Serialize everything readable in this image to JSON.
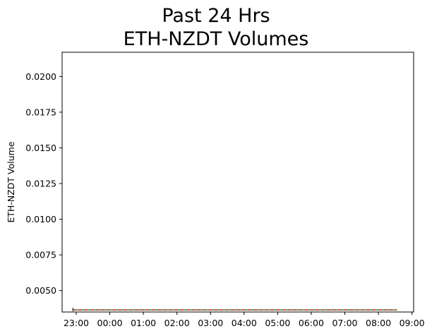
{
  "chart_data": {
    "type": "line",
    "title_lines": [
      "Past 24 Hrs",
      "ETH-NZDT Volumes"
    ],
    "xlabel": "",
    "ylabel": "ETH-NZDT Volume",
    "x_ticks": [
      {
        "label": "23:00",
        "hour": 23
      },
      {
        "label": "00:00",
        "hour": 24
      },
      {
        "label": "01:00",
        "hour": 25
      },
      {
        "label": "02:00",
        "hour": 26
      },
      {
        "label": "03:00",
        "hour": 27
      },
      {
        "label": "04:00",
        "hour": 28
      },
      {
        "label": "05:00",
        "hour": 29
      },
      {
        "label": "06:00",
        "hour": 30
      },
      {
        "label": "07:00",
        "hour": 31
      },
      {
        "label": "08:00",
        "hour": 32
      },
      {
        "label": "09:00",
        "hour": 33
      }
    ],
    "y_ticks": [
      "0.0050",
      "0.0075",
      "0.0100",
      "0.0125",
      "0.0150",
      "0.0175",
      "0.0200"
    ],
    "ylim": [
      0.0035,
      0.0217
    ],
    "xlim": [
      22.58,
      33.05
    ],
    "grid": false,
    "series": [
      {
        "type": "line",
        "color": "#000000",
        "x": [
          22.9,
          32.55
        ],
        "y": [
          0.00365,
          0.00365
        ]
      },
      {
        "type": "line",
        "color": "#2ca02c",
        "x": [
          22.9,
          32.55
        ],
        "y": [
          0.00365,
          0.00365
        ]
      },
      {
        "type": "line",
        "style": "dashed",
        "color": "#d62728",
        "x": [
          22.9,
          32.55
        ],
        "y": [
          0.00365,
          0.00365
        ]
      }
    ]
  }
}
